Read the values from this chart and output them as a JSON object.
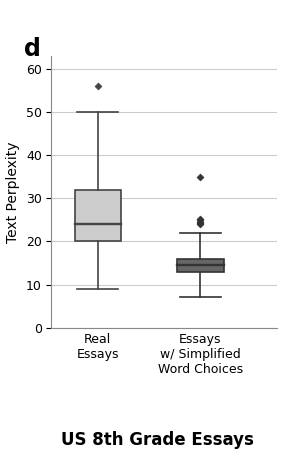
{
  "panel_label": "d",
  "title": "US 8th Grade Essays",
  "ylabel": "Text Perplexity",
  "ylim": [
    0,
    63
  ],
  "yticks": [
    0,
    10,
    20,
    30,
    40,
    50,
    60
  ],
  "categories": [
    "Real\nEssays",
    "Essays\nw/ Simplified\nWord Choices"
  ],
  "box1": {
    "whisker_low": 9,
    "q1": 20,
    "median": 24,
    "q3": 32,
    "whisker_high": 50,
    "outliers": [
      56
    ],
    "color": "#cccccc",
    "edgecolor": "#444444"
  },
  "box2": {
    "whisker_low": 7,
    "q1": 13,
    "median": 14.5,
    "q3": 16,
    "whisker_high": 22,
    "outliers": [
      35,
      24.0,
      24.3,
      24.6,
      24.9,
      25.2
    ],
    "color": "#666666",
    "edgecolor": "#333333"
  },
  "background_color": "#ffffff",
  "grid_color": "#cccccc",
  "title_fontsize": 12,
  "ylabel_fontsize": 10,
  "tick_fontsize": 9,
  "panel_label_fontsize": 17
}
